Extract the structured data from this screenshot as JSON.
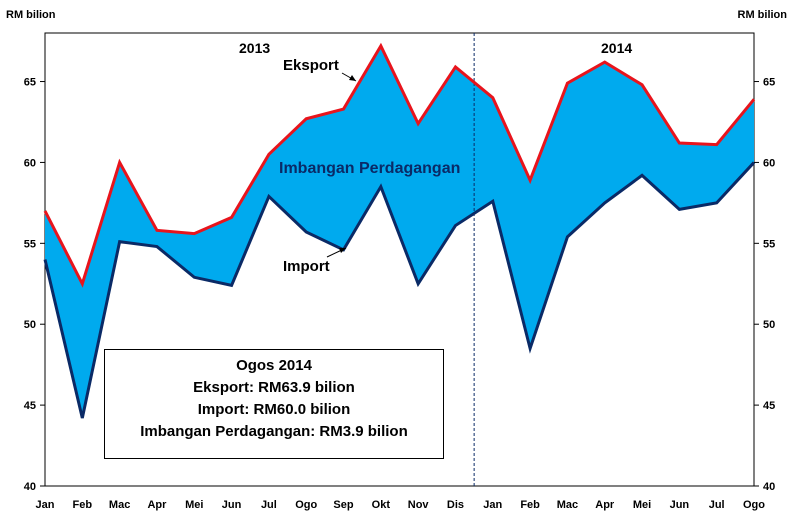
{
  "chart_data": {
    "type": "area",
    "ylabel_left": "RM bilion",
    "ylabel_right": "RM bilion",
    "ylim": [
      40,
      68
    ],
    "yticks": [
      40,
      45,
      50,
      55,
      60,
      65
    ],
    "categories": [
      "Jan",
      "Feb",
      "Mac",
      "Apr",
      "Mei",
      "Jun",
      "Jul",
      "Ogo",
      "Sep",
      "Okt",
      "Nov",
      "Dis",
      "Jan",
      "Feb",
      "Mac",
      "Apr",
      "Mei",
      "Jun",
      "Jul",
      "Ogo"
    ],
    "series": [
      {
        "name": "Eksport",
        "color": "#e8141c",
        "values": [
          57.0,
          52.5,
          60.0,
          55.8,
          55.6,
          56.6,
          60.5,
          62.7,
          63.3,
          67.2,
          62.4,
          65.9,
          64.0,
          58.9,
          64.9,
          66.2,
          64.8,
          61.2,
          61.1,
          63.9
        ]
      },
      {
        "name": "Import",
        "color": "#0a2a66",
        "values": [
          54.0,
          44.2,
          55.1,
          54.8,
          52.9,
          52.4,
          57.9,
          55.7,
          54.6,
          58.5,
          52.5,
          56.1,
          57.6,
          48.5,
          55.4,
          57.5,
          59.2,
          57.1,
          57.5,
          60.0
        ]
      }
    ],
    "fill_color": "#00aaee",
    "divider_after_index": 11,
    "annotations": {
      "year_2013": "2013",
      "year_2014": "2014",
      "eksport_label": "Eksport",
      "import_label": "Import",
      "balance_label": "Imbangan Perdagangan"
    },
    "grid": false,
    "legend": "none"
  },
  "summary": {
    "title": "Ogos 2014",
    "eksport": "Eksport: RM63.9 bilion",
    "import": "Import: RM60.0 bilion",
    "balance": "Imbangan Perdagangan: RM3.9 bilion"
  }
}
